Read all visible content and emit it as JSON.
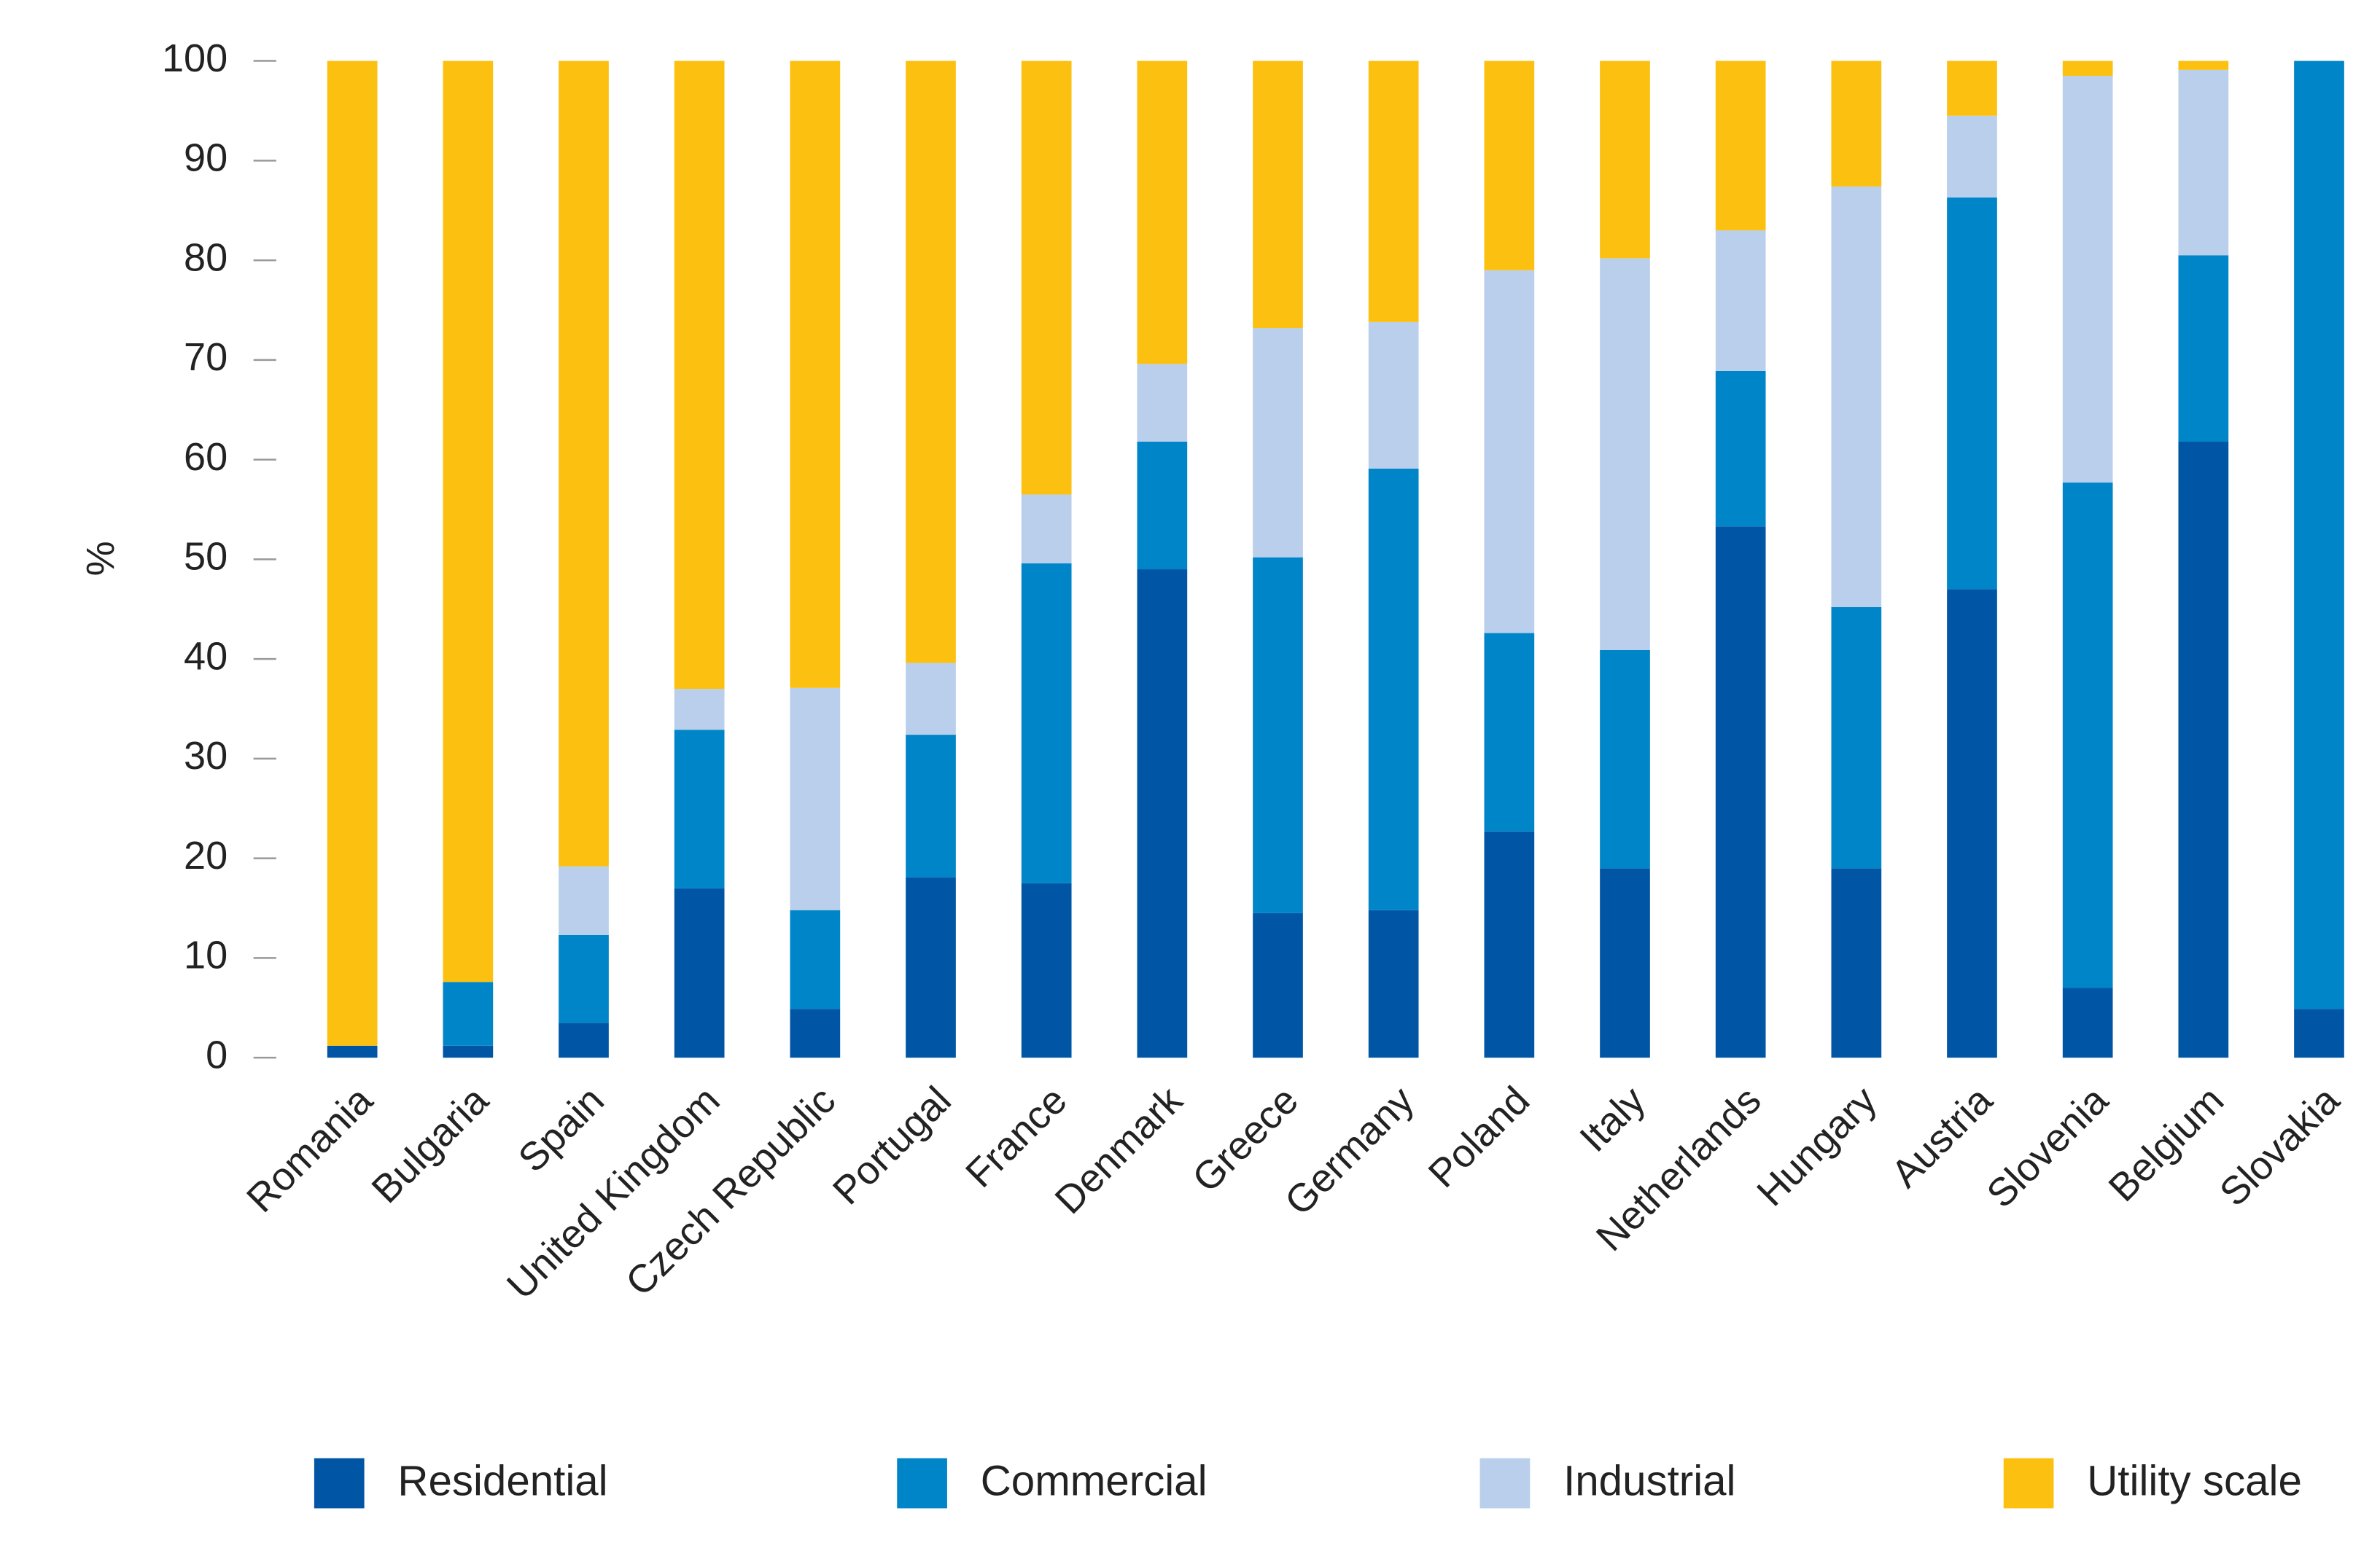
{
  "chart_data": {
    "type": "stacked-bar",
    "y_label": "%",
    "categories": [
      "Romania",
      "Bulgaria",
      "Spain",
      "United Kingdom",
      "Czech Republic",
      "Portugal",
      "France",
      "Denmark",
      "Greece",
      "Germany",
      "Poland",
      "Italy",
      "Netherlands",
      "Hungary",
      "Austria",
      "Slovenia",
      "Belgium",
      "Slovakia"
    ],
    "series": [
      {
        "name": "Residential",
        "color": "#0055a5",
        "values": [
          1.2,
          1.2,
          3.5,
          17,
          4.9,
          18.1,
          17.5,
          49,
          14.5,
          14.8,
          22.7,
          19,
          53.3,
          19,
          47,
          7,
          61.8,
          4.9
        ]
      },
      {
        "name": "Commercial",
        "color": "#0085c8",
        "values": [
          0,
          6.4,
          8.8,
          15.9,
          9.9,
          14.3,
          32.1,
          12.8,
          35.7,
          44.3,
          19.9,
          21.9,
          15.6,
          26.2,
          39.3,
          50.7,
          18.7,
          95.1
        ]
      },
      {
        "name": "Industrial",
        "color": "#b9cfeb",
        "values": [
          0,
          0,
          6.9,
          4.1,
          22.3,
          7.2,
          6.9,
          7.8,
          23,
          14.7,
          36.4,
          39.3,
          14.1,
          42.2,
          8.2,
          40.8,
          18.6,
          0
        ]
      },
      {
        "name": "Utility scale",
        "color": "#fcc010",
        "values": [
          98.8,
          92.4,
          80.8,
          63,
          62.9,
          60.4,
          43.5,
          30.4,
          26.8,
          26.2,
          21,
          19.8,
          17,
          12.6,
          5.5,
          1.5,
          0.9,
          0
        ]
      }
    ],
    "ylim": [
      0,
      100
    ],
    "yticks": [
      0,
      10,
      20,
      30,
      40,
      50,
      60,
      70,
      80,
      90,
      100
    ],
    "legend": "bottom"
  }
}
